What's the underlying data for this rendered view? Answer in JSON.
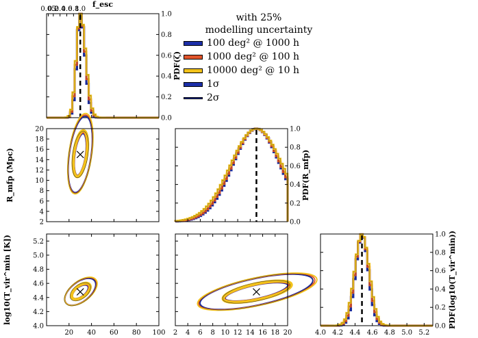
{
  "chart_data": {
    "type": "corner_plot",
    "parameters": [
      {
        "name": "zeta",
        "true_value": 30,
        "range": [
          0,
          100
        ],
        "ticks": [
          20,
          40,
          60,
          80,
          100
        ]
      },
      {
        "name": "R_mfp",
        "label": "R_mfp (Mpc)",
        "true_value": 15,
        "range": [
          2,
          20
        ],
        "ticks": [
          2,
          4,
          6,
          8,
          10,
          12,
          14,
          16,
          18,
          20
        ]
      },
      {
        "name": "log10_Tvir_min",
        "label": "log10(T_vir^min [K])",
        "true_value": 4.48,
        "range": [
          4.0,
          5.3
        ],
        "ticks": [
          4.0,
          4.2,
          4.4,
          4.6,
          4.8,
          5.0,
          5.2
        ]
      }
    ],
    "top_axis": {
      "label": "f_esc",
      "ticks": [
        "0.05",
        "0.2",
        "0.4",
        "0.6",
        "0.8",
        "1.0"
      ],
      "zeta_positions": [
        1.5,
        6,
        12,
        18,
        24,
        30
      ]
    },
    "marginal_labels": [
      "PDF(ζ)",
      "PDF(R_mfp)",
      "PDF(log10(T_vir^min))"
    ],
    "pdf_ticks": [
      "0.0",
      "0.2",
      "0.4",
      "0.6",
      "0.8",
      "1.0"
    ],
    "legend_title": [
      "with 25%",
      "modelling uncertainty"
    ],
    "series": [
      {
        "name": "100 deg² @ 1000 h",
        "color": "#1c2fa8",
        "marginal_width": {
          "zeta": 3.2,
          "R_mfp": 3.5,
          "Tvir": 0.075
        }
      },
      {
        "name": "1000 deg² @ 100 h",
        "color": "#e0542b",
        "marginal_width": {
          "zeta": 3.4,
          "R_mfp": 3.6,
          "Tvir": 0.08
        }
      },
      {
        "name": "10000 deg² @ 10 h",
        "color": "#f2c21b",
        "marginal_width": {
          "zeta": 3.6,
          "R_mfp": 3.8,
          "Tvir": 0.085
        }
      }
    ],
    "contour_levels": [
      "1σ",
      "2σ"
    ]
  },
  "text": {
    "fesc_label": "f_esc",
    "rmfp_label": "R_mfp (Mpc)",
    "tvir_label": "log10(T_vir^min [K])"
  },
  "legend": {
    "title_line1": "with 25%",
    "title_line2": "modelling uncertainty",
    "entries": [
      {
        "label": "100 deg² @ 1000 h",
        "color": "#1c2fa8",
        "style": "thick"
      },
      {
        "label": "1000 deg² @ 100 h",
        "color": "#e0542b",
        "style": "thick"
      },
      {
        "label": "10000 deg² @ 10 h",
        "color": "#f2c21b",
        "style": "thick"
      },
      {
        "label": "1σ",
        "color": "#1c2fa8",
        "style": "thick-black"
      },
      {
        "label": "2σ",
        "color": "#1c2fa8",
        "style": "thin"
      }
    ]
  }
}
